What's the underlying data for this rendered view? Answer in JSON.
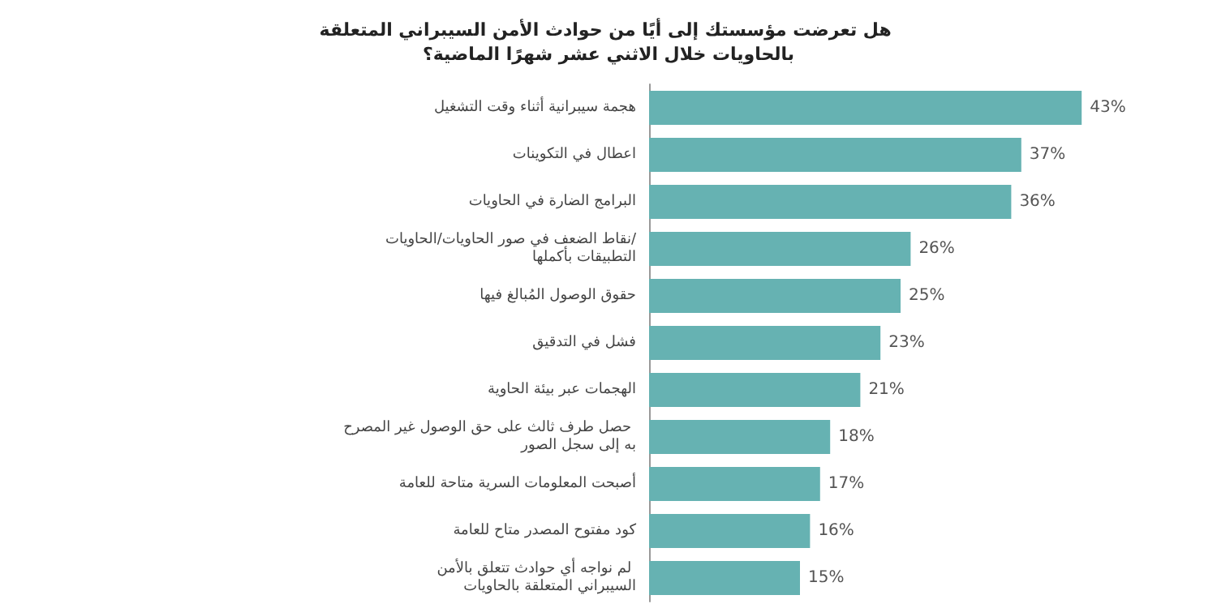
{
  "chart_data": {
    "type": "bar",
    "orientation": "horizontal",
    "title": "هل تعرضت مؤسستك إلى أيًا من حوادث الأمن السيبراني المتعلقة بالحاويات خلال الاثني عشر شهرًا الماضية؟",
    "categories": [
      "هجمة سيبرانية أثناء وقت التشغيل",
      "اعطال في التكوينات",
      "البرامج الضارة في الحاويات",
      "نقاط الضعف في صور الحاويات/الحاويات/التطبيقات بأكملها",
      "حقوق الوصول المُبالغ فيها",
      "فشل في التدقيق",
      "الهجمات عبر بيئة الحاوية",
      "حصل طرف ثالث على حق الوصول غير المصرح به إلى سجل الصور",
      "أصبحت المعلومات السرية متاحة للعامة",
      "كود مفتوح المصدر متاح للعامة",
      "لم نواجه أي حوادث تتعلق بالأمن السيبراني المتعلقة بالحاويات"
    ],
    "values": [
      43,
      37,
      36,
      26,
      25,
      23,
      21,
      18,
      17,
      16,
      15
    ],
    "color": "#66b2b2",
    "data_labels": true,
    "value_labels": [
      "43%",
      "37%",
      "36%",
      "26%",
      "25%",
      "23%",
      "21%",
      "18%",
      "17%",
      "16%",
      "15%"
    ]
  }
}
